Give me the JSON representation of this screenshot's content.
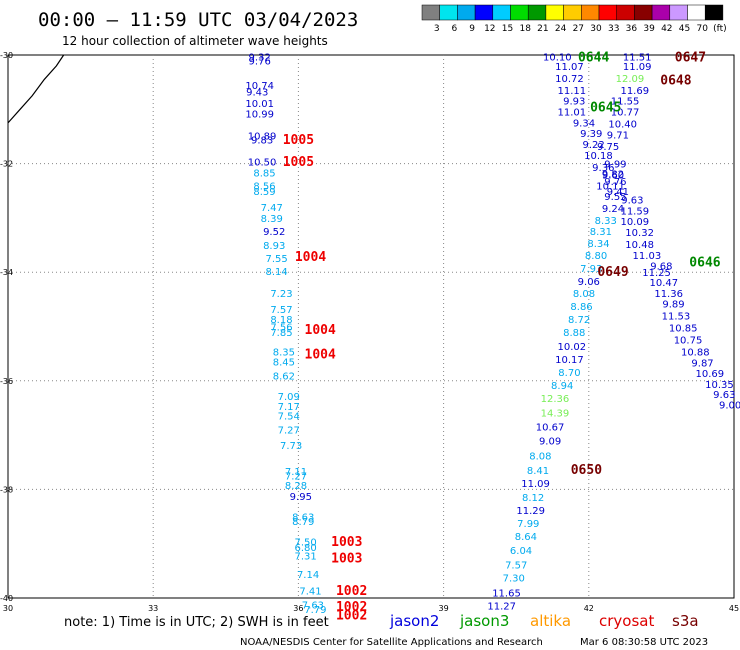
{
  "chart_data": {
    "type": "scatter",
    "title": "00:00 – 11:59 UTC 03/04/2023",
    "subtitle": "12 hour collection of altimeter wave heights",
    "x_ticks": [
      30,
      33,
      36,
      39,
      42,
      45
    ],
    "y_ticks": [
      -30,
      -32,
      -34,
      -36,
      -38,
      -40
    ],
    "xlim": [
      30,
      45
    ],
    "ylim": [
      -40,
      -30
    ],
    "colorbar": {
      "labels": [
        "3",
        "6",
        "9",
        "12",
        "15",
        "18",
        "21",
        "24",
        "27",
        "30",
        "33",
        "36",
        "39",
        "42",
        "45",
        "70",
        "(ft)"
      ],
      "colors": [
        "#808080",
        "#00e5ee",
        "#00aaee",
        "#0000ff",
        "#00ccff",
        "#00dd00",
        "#009900",
        "#ffff00",
        "#ffcc00",
        "#ff8800",
        "#ff0000",
        "#cc0000",
        "#880000",
        "#aa00aa",
        "#cc99ff",
        "#ffffff",
        "#000000"
      ]
    },
    "wave_heights": [
      {
        "lon": 35.2,
        "lat": -30.03,
        "v": "9.32",
        "c": "#0000cc"
      },
      {
        "lon": 35.2,
        "lat": -30.1,
        "v": "9.76",
        "c": "#0000cc"
      },
      {
        "lon": 35.2,
        "lat": -30.55,
        "v": "10.74",
        "c": "#0000cc"
      },
      {
        "lon": 35.15,
        "lat": -30.67,
        "v": "9.43",
        "c": "#0000cc"
      },
      {
        "lon": 35.2,
        "lat": -30.88,
        "v": "10.01",
        "c": "#0000cc"
      },
      {
        "lon": 35.2,
        "lat": -31.08,
        "v": "10.99",
        "c": "#0000cc"
      },
      {
        "lon": 35.25,
        "lat": -31.48,
        "v": "10.89",
        "c": "#0000cc"
      },
      {
        "lon": 35.25,
        "lat": -31.56,
        "v": "9.83",
        "c": "#0000cc"
      },
      {
        "lon": 35.25,
        "lat": -31.96,
        "v": "10.50",
        "c": "#0000cc"
      },
      {
        "lon": 35.3,
        "lat": -32.16,
        "v": "8.85",
        "c": "#00aaee"
      },
      {
        "lon": 35.3,
        "lat": -32.4,
        "v": "8.56",
        "c": "#00aaee"
      },
      {
        "lon": 35.3,
        "lat": -32.5,
        "v": "8.59",
        "c": "#00aaee"
      },
      {
        "lon": 35.45,
        "lat": -32.8,
        "v": "7.47",
        "c": "#00aaee"
      },
      {
        "lon": 35.45,
        "lat": -33.0,
        "v": "8.39",
        "c": "#00aaee"
      },
      {
        "lon": 35.5,
        "lat": -33.24,
        "v": "9.52",
        "c": "#0000cc"
      },
      {
        "lon": 35.5,
        "lat": -33.5,
        "v": "8.93",
        "c": "#00aaee"
      },
      {
        "lon": 35.55,
        "lat": -33.74,
        "v": "7.55",
        "c": "#00aaee"
      },
      {
        "lon": 35.55,
        "lat": -33.98,
        "v": "8.14",
        "c": "#00aaee"
      },
      {
        "lon": 35.65,
        "lat": -34.38,
        "v": "7.23",
        "c": "#00aaee"
      },
      {
        "lon": 35.65,
        "lat": -34.68,
        "v": "7.57",
        "c": "#00aaee"
      },
      {
        "lon": 35.65,
        "lat": -34.86,
        "v": "8.18",
        "c": "#00aaee"
      },
      {
        "lon": 35.65,
        "lat": -35.0,
        "v": "7.56",
        "c": "#00aaee"
      },
      {
        "lon": 35.65,
        "lat": -35.1,
        "v": "7.85",
        "c": "#00aaee"
      },
      {
        "lon": 35.7,
        "lat": -35.46,
        "v": "8.35",
        "c": "#00aaee"
      },
      {
        "lon": 35.7,
        "lat": -35.64,
        "v": "8.45",
        "c": "#00aaee"
      },
      {
        "lon": 35.7,
        "lat": -35.9,
        "v": "8.62",
        "c": "#00aaee"
      },
      {
        "lon": 35.8,
        "lat": -36.28,
        "v": "7.09",
        "c": "#00aaee"
      },
      {
        "lon": 35.8,
        "lat": -36.46,
        "v": "7.17",
        "c": "#00aaee"
      },
      {
        "lon": 35.8,
        "lat": -36.64,
        "v": "7.54",
        "c": "#00aaee"
      },
      {
        "lon": 35.8,
        "lat": -36.9,
        "v": "7.27",
        "c": "#00aaee"
      },
      {
        "lon": 35.85,
        "lat": -37.18,
        "v": "7.73",
        "c": "#00aaee"
      },
      {
        "lon": 35.95,
        "lat": -37.66,
        "v": "7.11",
        "c": "#00aaee"
      },
      {
        "lon": 35.95,
        "lat": -37.74,
        "v": "7.27",
        "c": "#00aaee"
      },
      {
        "lon": 35.95,
        "lat": -37.92,
        "v": "8.28",
        "c": "#00aaee"
      },
      {
        "lon": 36.05,
        "lat": -38.12,
        "v": "9.95",
        "c": "#0000cc"
      },
      {
        "lon": 36.1,
        "lat": -38.5,
        "v": "8.63",
        "c": "#00aaee"
      },
      {
        "lon": 36.1,
        "lat": -38.58,
        "v": "8.79",
        "c": "#00aaee"
      },
      {
        "lon": 36.15,
        "lat": -38.96,
        "v": "7.50",
        "c": "#00aaee"
      },
      {
        "lon": 36.15,
        "lat": -39.06,
        "v": "6.80",
        "c": "#00aaee"
      },
      {
        "lon": 36.15,
        "lat": -39.22,
        "v": "7.31",
        "c": "#00aaee"
      },
      {
        "lon": 36.2,
        "lat": -39.56,
        "v": "7.14",
        "c": "#00aaee"
      },
      {
        "lon": 36.25,
        "lat": -39.86,
        "v": "7.41",
        "c": "#00aaee"
      },
      {
        "lon": 36.3,
        "lat": -40.12,
        "v": "7.63",
        "c": "#00aaee"
      },
      {
        "lon": 36.35,
        "lat": -40.2,
        "v": "7.79",
        "c": "#00aaee"
      },
      {
        "lon": 41.35,
        "lat": -30.03,
        "v": "10.10",
        "c": "#0000cc"
      },
      {
        "lon": 41.6,
        "lat": -30.2,
        "v": "11.07",
        "c": "#0000cc"
      },
      {
        "lon": 41.6,
        "lat": -30.42,
        "v": "10.72",
        "c": "#0000cc"
      },
      {
        "lon": 41.65,
        "lat": -30.64,
        "v": "11.11",
        "c": "#0000cc"
      },
      {
        "lon": 41.7,
        "lat": -30.84,
        "v": "9.93",
        "c": "#0000cc"
      },
      {
        "lon": 41.65,
        "lat": -31.04,
        "v": "11.01",
        "c": "#0000cc"
      },
      {
        "lon": 41.9,
        "lat": -31.24,
        "v": "9.34",
        "c": "#0000cc"
      },
      {
        "lon": 42.05,
        "lat": -31.44,
        "v": "9.39",
        "c": "#0000cc"
      },
      {
        "lon": 42.1,
        "lat": -31.64,
        "v": "9.22",
        "c": "#0000cc"
      },
      {
        "lon": 42.2,
        "lat": -31.84,
        "v": "10.18",
        "c": "#0000cc"
      },
      {
        "lon": 42.3,
        "lat": -32.06,
        "v": "9.36",
        "c": "#0000cc"
      },
      {
        "lon": 42.5,
        "lat": -32.18,
        "v": "9.82",
        "c": "#0000cc"
      },
      {
        "lon": 42.55,
        "lat": -32.32,
        "v": "9.76",
        "c": "#0000cc"
      },
      {
        "lon": 42.6,
        "lat": -32.5,
        "v": "9.41",
        "c": "#0000cc"
      },
      {
        "lon": 42.55,
        "lat": -32.6,
        "v": "9.55",
        "c": "#0000cc"
      },
      {
        "lon": 42.5,
        "lat": -32.82,
        "v": "9.24",
        "c": "#0000cc"
      },
      {
        "lon": 42.35,
        "lat": -33.04,
        "v": "8.33",
        "c": "#00aaee"
      },
      {
        "lon": 42.25,
        "lat": -33.24,
        "v": "8.31",
        "c": "#00aaee"
      },
      {
        "lon": 42.2,
        "lat": -33.46,
        "v": "8.34",
        "c": "#00aaee"
      },
      {
        "lon": 42.15,
        "lat": -33.68,
        "v": "8.80",
        "c": "#00aaee"
      },
      {
        "lon": 42.05,
        "lat": -33.92,
        "v": "7.93",
        "c": "#00aaee"
      },
      {
        "lon": 42.0,
        "lat": -34.16,
        "v": "9.06",
        "c": "#0000cc"
      },
      {
        "lon": 41.9,
        "lat": -34.38,
        "v": "8.08",
        "c": "#00aaee"
      },
      {
        "lon": 41.85,
        "lat": -34.62,
        "v": "8.86",
        "c": "#00aaee"
      },
      {
        "lon": 41.8,
        "lat": -34.86,
        "v": "8.72",
        "c": "#00aaee"
      },
      {
        "lon": 41.7,
        "lat": -35.1,
        "v": "8.88",
        "c": "#00aaee"
      },
      {
        "lon": 41.65,
        "lat": -35.36,
        "v": "10.02",
        "c": "#0000cc"
      },
      {
        "lon": 41.6,
        "lat": -35.6,
        "v": "10.17",
        "c": "#0000cc"
      },
      {
        "lon": 41.6,
        "lat": -35.84,
        "v": "8.70",
        "c": "#00aaee"
      },
      {
        "lon": 41.45,
        "lat": -36.08,
        "v": "8.94",
        "c": "#00aaee"
      },
      {
        "lon": 41.3,
        "lat": -36.32,
        "v": "12.36",
        "c": "#77ee55"
      },
      {
        "lon": 41.3,
        "lat": -36.58,
        "v": "14.39",
        "c": "#77ee55"
      },
      {
        "lon": 41.2,
        "lat": -36.84,
        "v": "10.67",
        "c": "#0000cc"
      },
      {
        "lon": 41.2,
        "lat": -37.1,
        "v": "9.09",
        "c": "#0000cc"
      },
      {
        "lon": 41.0,
        "lat": -37.38,
        "v": "8.08",
        "c": "#00aaee"
      },
      {
        "lon": 40.95,
        "lat": -37.64,
        "v": "8.41",
        "c": "#00aaee"
      },
      {
        "lon": 40.9,
        "lat": -37.88,
        "v": "11.09",
        "c": "#0000cc"
      },
      {
        "lon": 40.85,
        "lat": -38.14,
        "v": "8.12",
        "c": "#00aaee"
      },
      {
        "lon": 40.8,
        "lat": -38.38,
        "v": "11.29",
        "c": "#0000cc"
      },
      {
        "lon": 40.75,
        "lat": -38.62,
        "v": "7.99",
        "c": "#00aaee"
      },
      {
        "lon": 40.7,
        "lat": -38.86,
        "v": "8.64",
        "c": "#00aaee"
      },
      {
        "lon": 40.6,
        "lat": -39.12,
        "v": "6.04",
        "c": "#00aaee"
      },
      {
        "lon": 40.5,
        "lat": -39.38,
        "v": "7.57",
        "c": "#00aaee"
      },
      {
        "lon": 40.45,
        "lat": -39.62,
        "v": "7.30",
        "c": "#00aaee"
      },
      {
        "lon": 40.3,
        "lat": -39.9,
        "v": "11.65",
        "c": "#0000cc"
      },
      {
        "lon": 40.2,
        "lat": -40.14,
        "v": "11.27",
        "c": "#0000cc"
      },
      {
        "lon": 43.0,
        "lat": -30.03,
        "v": "11.51",
        "c": "#0000cc"
      },
      {
        "lon": 43.0,
        "lat": -30.2,
        "v": "11.09",
        "c": "#0000cc"
      },
      {
        "lon": 42.85,
        "lat": -30.42,
        "v": "12.09",
        "c": "#77ee55"
      },
      {
        "lon": 42.95,
        "lat": -30.64,
        "v": "11.69",
        "c": "#0000cc"
      },
      {
        "lon": 42.75,
        "lat": -30.84,
        "v": "11.55",
        "c": "#0000cc"
      },
      {
        "lon": 42.75,
        "lat": -31.04,
        "v": "10.77",
        "c": "#0000cc"
      },
      {
        "lon": 42.7,
        "lat": -31.26,
        "v": "10.40",
        "c": "#0000cc"
      },
      {
        "lon": 42.6,
        "lat": -31.46,
        "v": "9.71",
        "c": "#0000cc"
      },
      {
        "lon": 42.4,
        "lat": -31.68,
        "v": "9.75",
        "c": "#0000cc"
      },
      {
        "lon": 42.55,
        "lat": -32.0,
        "v": "9.99",
        "c": "#0000cc"
      },
      {
        "lon": 42.5,
        "lat": -32.2,
        "v": "9.60",
        "c": "#0000cc"
      },
      {
        "lon": 42.45,
        "lat": -32.4,
        "v": "10.11",
        "c": "#0000cc"
      },
      {
        "lon": 42.9,
        "lat": -32.66,
        "v": "9.63",
        "c": "#0000cc"
      },
      {
        "lon": 42.95,
        "lat": -32.86,
        "v": "11.59",
        "c": "#0000cc"
      },
      {
        "lon": 42.95,
        "lat": -33.06,
        "v": "10.09",
        "c": "#0000cc"
      },
      {
        "lon": 43.05,
        "lat": -33.26,
        "v": "10.32",
        "c": "#0000cc"
      },
      {
        "lon": 43.05,
        "lat": -33.48,
        "v": "10.48",
        "c": "#0000cc"
      },
      {
        "lon": 43.2,
        "lat": -33.68,
        "v": "11.03",
        "c": "#0000cc"
      },
      {
        "lon": 43.5,
        "lat": -33.88,
        "v": "9.68",
        "c": "#0000cc"
      },
      {
        "lon": 43.4,
        "lat": -34.0,
        "v": "11.25",
        "c": "#0000cc"
      },
      {
        "lon": 43.55,
        "lat": -34.18,
        "v": "10.47",
        "c": "#0000cc"
      },
      {
        "lon": 43.65,
        "lat": -34.38,
        "v": "11.36",
        "c": "#0000cc"
      },
      {
        "lon": 43.75,
        "lat": -34.58,
        "v": "9.89",
        "c": "#0000cc"
      },
      {
        "lon": 43.8,
        "lat": -34.8,
        "v": "11.53",
        "c": "#0000cc"
      },
      {
        "lon": 43.95,
        "lat": -35.02,
        "v": "10.85",
        "c": "#0000cc"
      },
      {
        "lon": 44.05,
        "lat": -35.24,
        "v": "10.75",
        "c": "#0000cc"
      },
      {
        "lon": 44.2,
        "lat": -35.46,
        "v": "10.88",
        "c": "#0000cc"
      },
      {
        "lon": 44.35,
        "lat": -35.66,
        "v": "9.87",
        "c": "#0000cc"
      },
      {
        "lon": 44.5,
        "lat": -35.86,
        "v": "10.69",
        "c": "#0000cc"
      },
      {
        "lon": 44.7,
        "lat": -36.06,
        "v": "10.35",
        "c": "#0000cc"
      },
      {
        "lon": 44.8,
        "lat": -36.24,
        "v": "9.63",
        "c": "#0000cc"
      },
      {
        "lon": 44.92,
        "lat": -36.44,
        "v": "9.00",
        "c": "#0000cc"
      }
    ],
    "pass_labels": [
      {
        "lon": 36.0,
        "lat": -31.55,
        "v": "1005",
        "c": "#ee0000"
      },
      {
        "lon": 36.0,
        "lat": -31.95,
        "v": "1005",
        "c": "#ee0000"
      },
      {
        "lon": 36.25,
        "lat": -33.7,
        "v": "1004",
        "c": "#ee0000"
      },
      {
        "lon": 36.45,
        "lat": -35.05,
        "v": "1004",
        "c": "#ee0000"
      },
      {
        "lon": 36.45,
        "lat": -35.5,
        "v": "1004",
        "c": "#ee0000"
      },
      {
        "lon": 37.0,
        "lat": -38.95,
        "v": "1003",
        "c": "#ee0000"
      },
      {
        "lon": 37.0,
        "lat": -39.25,
        "v": "1003",
        "c": "#ee0000"
      },
      {
        "lon": 37.1,
        "lat": -39.85,
        "v": "1002",
        "c": "#ee0000"
      },
      {
        "lon": 37.1,
        "lat": -40.15,
        "v": "1002",
        "c": "#ee0000"
      },
      {
        "lon": 37.1,
        "lat": -40.3,
        "v": "1002",
        "c": "#ee0000"
      },
      {
        "lon": 42.1,
        "lat": -30.03,
        "v": "0644",
        "c": "#008800"
      },
      {
        "lon": 44.1,
        "lat": -30.03,
        "v": "0647",
        "c": "#770000"
      },
      {
        "lon": 43.8,
        "lat": -30.45,
        "v": "0648",
        "c": "#770000"
      },
      {
        "lon": 42.35,
        "lat": -30.95,
        "v": "0645",
        "c": "#008800"
      },
      {
        "lon": 44.4,
        "lat": -33.8,
        "v": "0646",
        "c": "#008800"
      },
      {
        "lon": 42.5,
        "lat": -33.98,
        "v": "0649",
        "c": "#770000"
      },
      {
        "lon": 41.95,
        "lat": -37.62,
        "v": "0650",
        "c": "#770000"
      }
    ],
    "coast": [
      [
        30.0,
        -31.25
      ],
      [
        30.25,
        -31.0
      ],
      [
        30.5,
        -30.75
      ],
      [
        30.75,
        -30.45
      ],
      [
        31.0,
        -30.2
      ],
      [
        31.15,
        -30.0
      ]
    ]
  },
  "note": "note:  1) Time is in UTC;  2) SWH is in feet",
  "legend": [
    {
      "name": "jason2",
      "color": "#0000dd"
    },
    {
      "name": "jason3",
      "color": "#009900"
    },
    {
      "name": "altika",
      "color": "#ff9900"
    },
    {
      "name": "cryosat",
      "color": "#dd0000"
    },
    {
      "name": "s3a",
      "color": "#770000"
    }
  ],
  "footer_left": "NOAA/NESDIS Center for Satellite Applications and Research",
  "footer_right": "Mar  6 08:30:58 UTC 2023"
}
